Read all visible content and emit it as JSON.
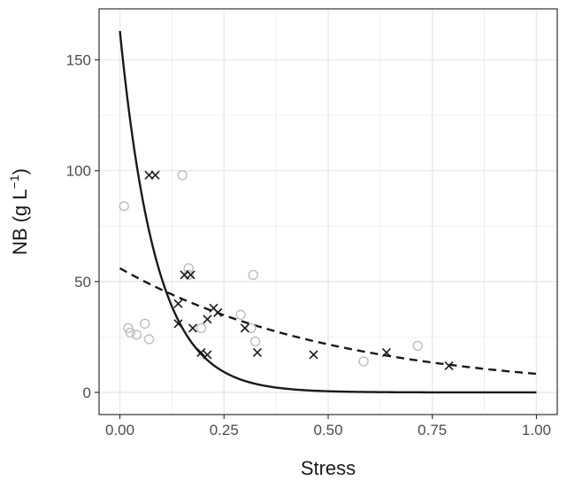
{
  "chart_data": {
    "type": "scatter",
    "xlabel": "Stress",
    "ylabel": "NB (g L",
    "ylabel_sup": "−1",
    "ylabel_close": ")",
    "xlim": [
      -0.05,
      1.05
    ],
    "ylim": [
      -10,
      173
    ],
    "x_ticks": [
      0,
      0.25,
      0.5,
      0.75,
      1.0
    ],
    "x_tick_labels": [
      "0.00",
      "0.25",
      "0.50",
      "0.75",
      "1.00"
    ],
    "y_ticks": [
      0,
      50,
      100,
      150
    ],
    "y_tick_labels": [
      "0",
      "50",
      "100",
      "150"
    ],
    "grid": true,
    "legend": "none",
    "colors": {
      "grid": "#ebebeb",
      "panel_border": "#333333",
      "circle": "#bdbdbd",
      "cross": "#1a1a1a",
      "curve": "#1a1a1a"
    },
    "series": [
      {
        "marker": "open-circle",
        "points": [
          [
            0.01,
            84
          ],
          [
            0.02,
            29
          ],
          [
            0.025,
            27
          ],
          [
            0.04,
            26
          ],
          [
            0.06,
            31
          ],
          [
            0.07,
            24
          ],
          [
            0.15,
            98
          ],
          [
            0.165,
            56
          ],
          [
            0.165,
            53
          ],
          [
            0.195,
            29
          ],
          [
            0.29,
            35
          ],
          [
            0.315,
            29
          ],
          [
            0.32,
            53
          ],
          [
            0.325,
            23
          ],
          [
            0.585,
            14
          ],
          [
            0.715,
            21
          ]
        ]
      },
      {
        "marker": "cross",
        "points": [
          [
            0.07,
            98
          ],
          [
            0.085,
            98
          ],
          [
            0.14,
            40
          ],
          [
            0.14,
            31
          ],
          [
            0.155,
            53
          ],
          [
            0.17,
            53
          ],
          [
            0.175,
            29
          ],
          [
            0.195,
            18
          ],
          [
            0.21,
            17
          ],
          [
            0.21,
            33
          ],
          [
            0.225,
            38
          ],
          [
            0.235,
            36
          ],
          [
            0.3,
            29
          ],
          [
            0.33,
            18
          ],
          [
            0.465,
            17
          ],
          [
            0.64,
            18
          ],
          [
            0.79,
            12
          ]
        ]
      },
      {
        "line": "solid",
        "model": {
          "form": "exponential",
          "a": 163,
          "b": 11.5
        }
      },
      {
        "line": "dashed",
        "model": {
          "form": "exponential",
          "a": 56,
          "b": 1.9
        }
      }
    ]
  }
}
